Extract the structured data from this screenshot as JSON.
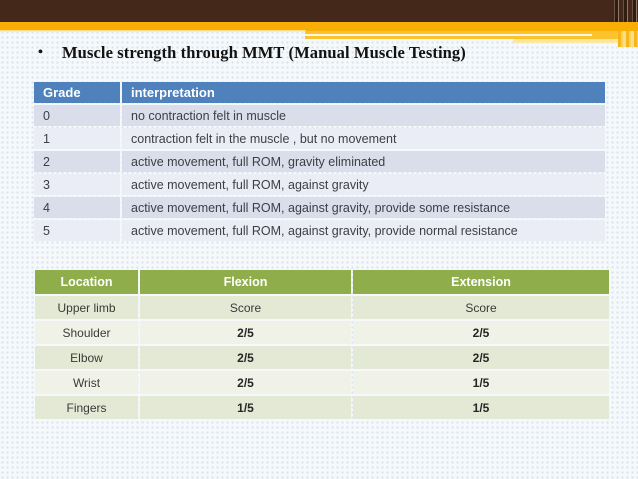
{
  "slide": {
    "bullet_glyph": "•",
    "title": "Muscle strength through MMT (Manual Muscle Testing)"
  },
  "colors": {
    "banner_brown": "#44291b",
    "banner_orange": "#f9ae05",
    "banner_amber": "#fcc32e",
    "grade_header_blue": "#4f81bd",
    "grade_band_dark": "#d9deea",
    "grade_band_light": "#eaedf5",
    "mmt_header_green": "#8fae4b",
    "mmt_band_dark": "#e4e9d5",
    "mmt_band_light": "#f0f2e8"
  },
  "grade_table": {
    "headers": [
      "Grade",
      "interpretation"
    ],
    "rows": [
      [
        "0",
        "no contraction felt in muscle"
      ],
      [
        "1",
        "contraction felt in the muscle , but no movement"
      ],
      [
        "2",
        "active movement, full ROM, gravity eliminated"
      ],
      [
        "3",
        "active movement, full ROM, against gravity"
      ],
      [
        "4",
        "active movement, full ROM, against gravity, provide some resistance"
      ],
      [
        "5",
        "active movement, full ROM, against gravity, provide normal resistance"
      ]
    ]
  },
  "mmt_table": {
    "headers": [
      "Location",
      "Flexion",
      "Extension"
    ],
    "rows": [
      [
        "Upper limb",
        "Score",
        "Score"
      ],
      [
        "Shoulder",
        "2/5",
        "2/5"
      ],
      [
        "Elbow",
        "2/5",
        "2/5"
      ],
      [
        "Wrist",
        "2/5",
        "1/5"
      ],
      [
        "Fingers",
        "1/5",
        "1/5"
      ]
    ]
  }
}
